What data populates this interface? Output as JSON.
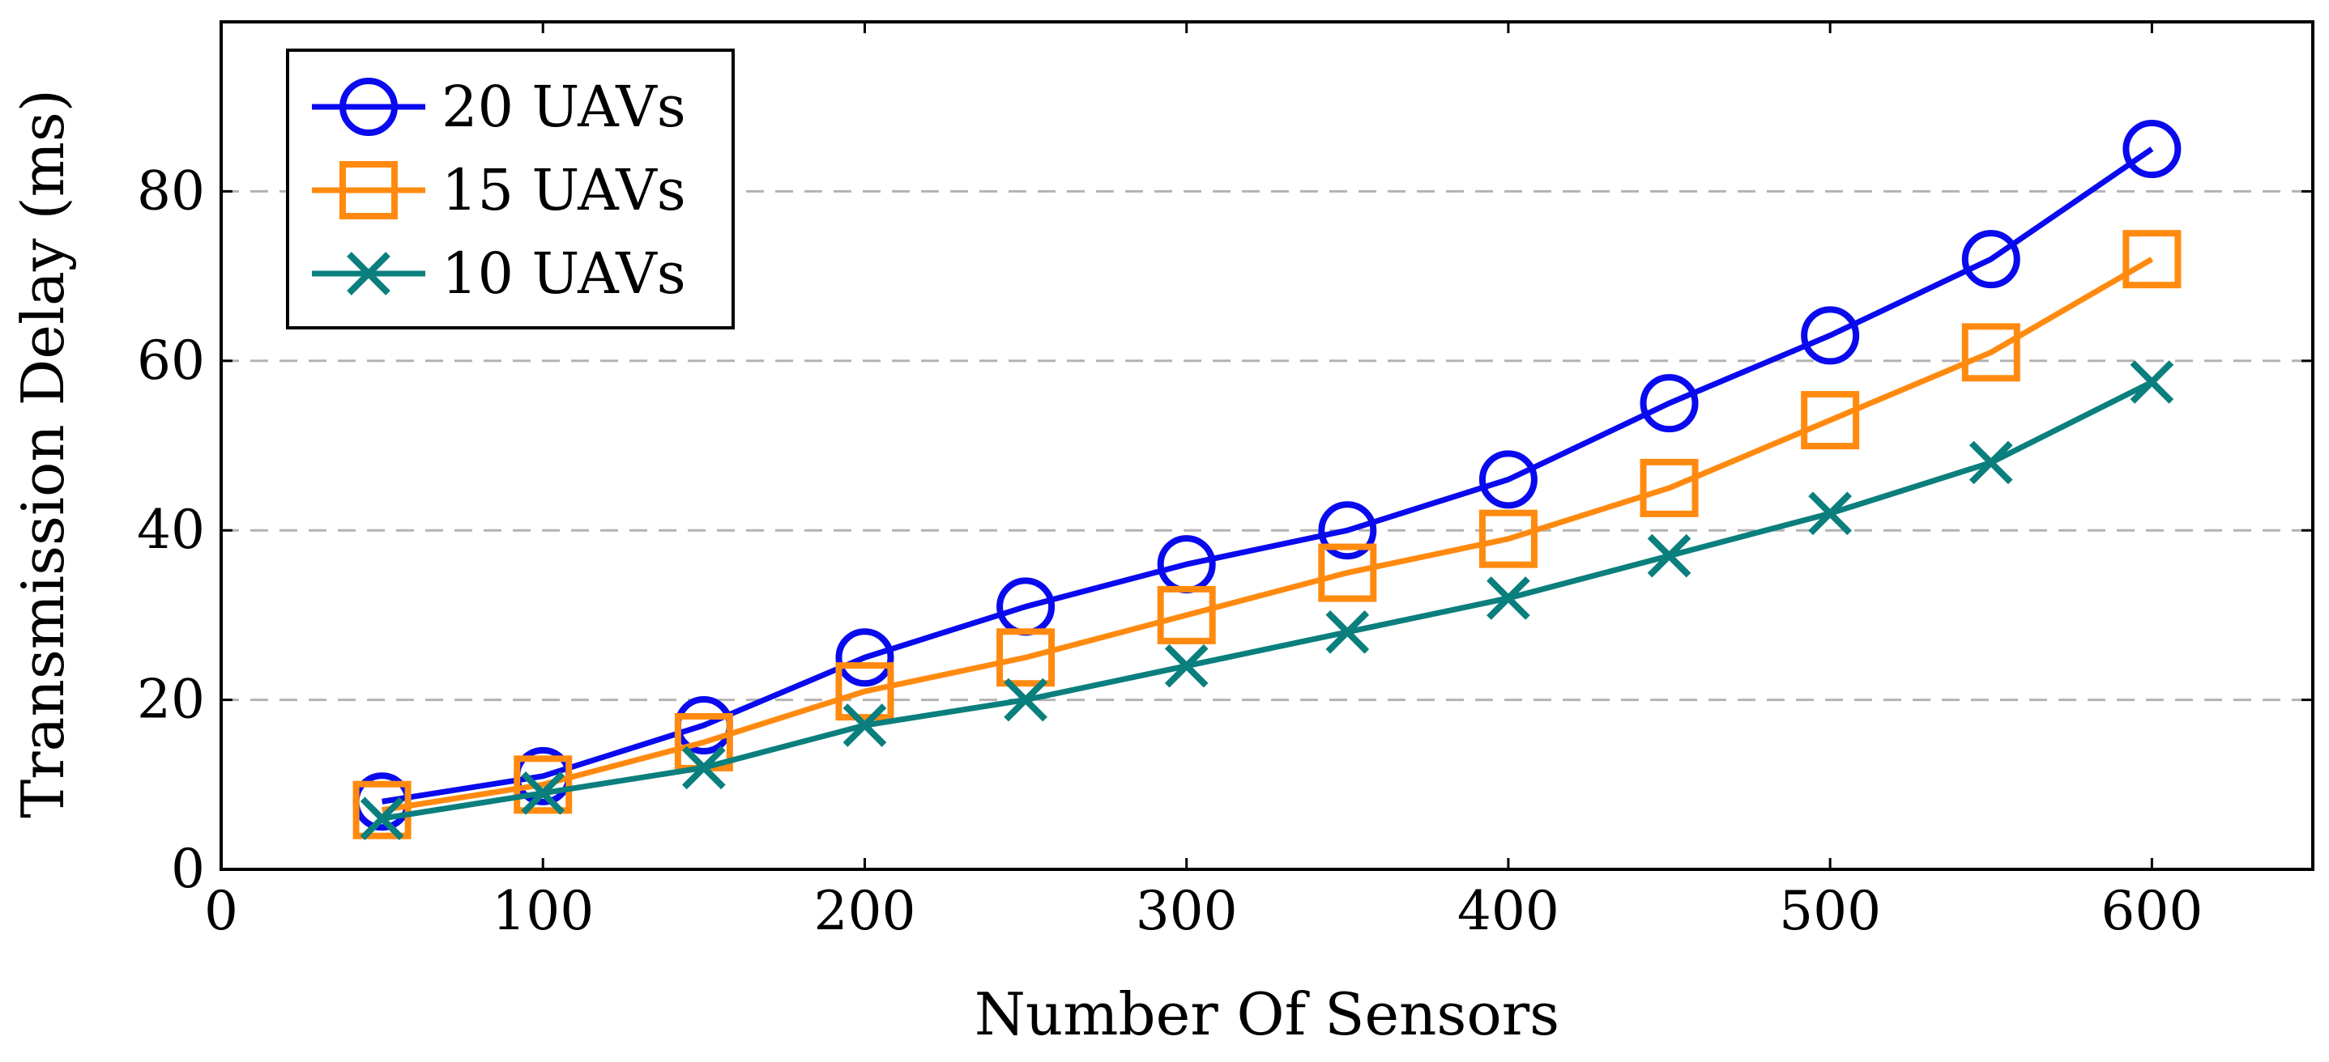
{
  "chart_data": {
    "type": "line",
    "title": "",
    "xlabel": "Number Of Sensors",
    "ylabel": "Transmission Delay (ms)",
    "xlim": [
      0,
      650
    ],
    "ylim": [
      0,
      100
    ],
    "xticks": [
      0,
      100,
      200,
      300,
      400,
      500,
      600
    ],
    "yticks": [
      0,
      20,
      40,
      60,
      80
    ],
    "grid": "horizontal dashed",
    "legend_position": "top-left",
    "x": [
      50,
      100,
      150,
      200,
      250,
      300,
      350,
      400,
      450,
      500,
      550,
      600
    ],
    "series": [
      {
        "name": "20 UAVs",
        "color": "#0a0aee",
        "marker": "circle",
        "values": [
          8,
          11,
          17,
          25,
          31,
          36,
          40,
          46,
          55,
          63,
          72,
          85
        ]
      },
      {
        "name": "15 UAVs",
        "color": "#ff8a0f",
        "marker": "square",
        "values": [
          7,
          10,
          15,
          21,
          25,
          30,
          35,
          39,
          45,
          53,
          61,
          72
        ]
      },
      {
        "name": "10 UAVs",
        "color": "#0a7f7d",
        "marker": "x",
        "values": [
          6,
          9,
          12,
          17,
          20,
          24,
          28,
          32,
          37,
          42,
          48,
          57.5
        ]
      }
    ]
  }
}
